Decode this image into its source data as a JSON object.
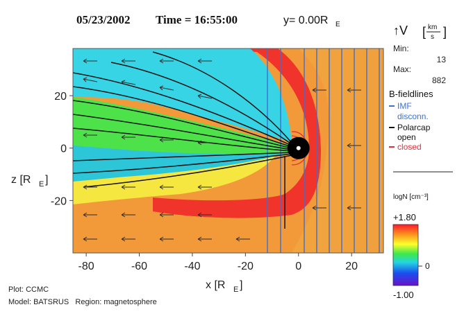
{
  "chart_data": {
    "type": "heatmap",
    "title": {
      "date": "05/23/2002",
      "time_label": "Time = 16:55:00",
      "y_label": "y= 0.00R",
      "y_unit_sub": "E"
    },
    "xlabel": {
      "text": "x [R",
      "sub": "E",
      "close": "]"
    },
    "ylabel": {
      "text": "z [R",
      "sub": "E",
      "close": "]"
    },
    "xlim": [
      -85,
      32
    ],
    "ylim": [
      -40,
      38
    ],
    "xticks": [
      -80,
      -60,
      -40,
      -20,
      0,
      20
    ],
    "yticks": [
      20,
      0,
      -20
    ],
    "grid": false,
    "color_variable": "logN",
    "color_unit": "[cm⁻³]",
    "colorbar": {
      "label": "logN [cm⁻³]",
      "max": "+1.80",
      "mid": "0",
      "min": "-1.00",
      "max_value": 1.8,
      "min_value": -1.0
    },
    "velocity_legend": {
      "symbol": "↑V",
      "unit_top": "km",
      "unit_bottom": "s",
      "min_label": "Min:",
      "min_value": "13",
      "max_label": "Max:",
      "max_value": "882"
    },
    "fieldline_legend": {
      "title": "B-fieldlines",
      "entries": [
        {
          "label": "IMF",
          "color": "#3d6fd0"
        },
        {
          "label": "disconn.",
          "color": "#3d6fd0"
        },
        {
          "label": "Polarcap",
          "color": "#111111"
        },
        {
          "label": "open",
          "color": "#111111"
        },
        {
          "label": "closed",
          "color": "#e0303a"
        }
      ]
    },
    "earth_center": {
      "x": 0,
      "z": 0
    },
    "footer": {
      "plot": "Plot: CCMC",
      "model": "Model: BATSRUS   Region: magnetosphere"
    }
  }
}
